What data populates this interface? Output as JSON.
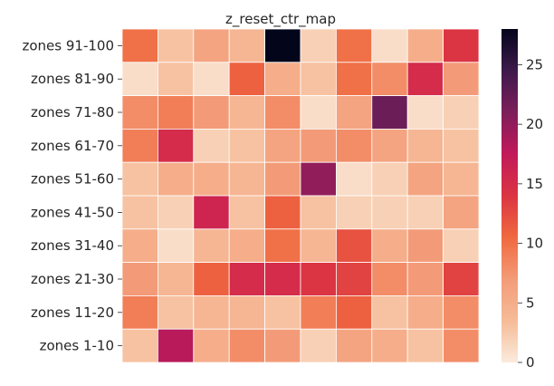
{
  "chart_data": {
    "type": "heatmap",
    "title": "z_reset_ctr_map",
    "xlabel": "",
    "ylabel": "",
    "rows": [
      "zones 91-100",
      "zones 81-90",
      "zones 71-80",
      "zones 61-70",
      "zones 51-60",
      "zones 41-50",
      "zones 31-40",
      "zones 21-30",
      "zones 11-20",
      "zones 1-10"
    ],
    "values": [
      [
        10,
        3,
        6,
        4,
        28,
        2,
        10,
        1,
        5,
        14
      ],
      [
        1,
        3,
        1,
        11,
        5,
        3,
        10,
        8,
        15,
        7
      ],
      [
        8,
        9,
        7,
        4,
        8,
        1,
        6,
        22,
        1,
        2
      ],
      [
        9,
        15,
        2,
        3,
        6,
        7,
        8,
        6,
        4,
        3
      ],
      [
        3,
        5,
        5,
        4,
        7,
        20,
        1,
        2,
        6,
        4
      ],
      [
        3,
        2,
        16,
        3,
        11,
        3,
        2,
        2,
        2,
        6
      ],
      [
        5,
        1,
        4,
        5,
        10,
        4,
        12,
        5,
        7,
        2
      ],
      [
        7,
        4,
        11,
        15,
        15,
        14,
        13,
        8,
        7,
        13
      ],
      [
        9,
        3,
        4,
        4,
        3,
        9,
        11,
        3,
        5,
        8
      ],
      [
        3,
        18,
        5,
        8,
        7,
        2,
        6,
        5,
        3,
        8
      ]
    ],
    "vmin": 0,
    "vmax": 28,
    "colorbar_ticks": [
      "0",
      "5",
      "10",
      "15",
      "20",
      "25"
    ],
    "grid": true,
    "colormap": "rocket_r"
  }
}
